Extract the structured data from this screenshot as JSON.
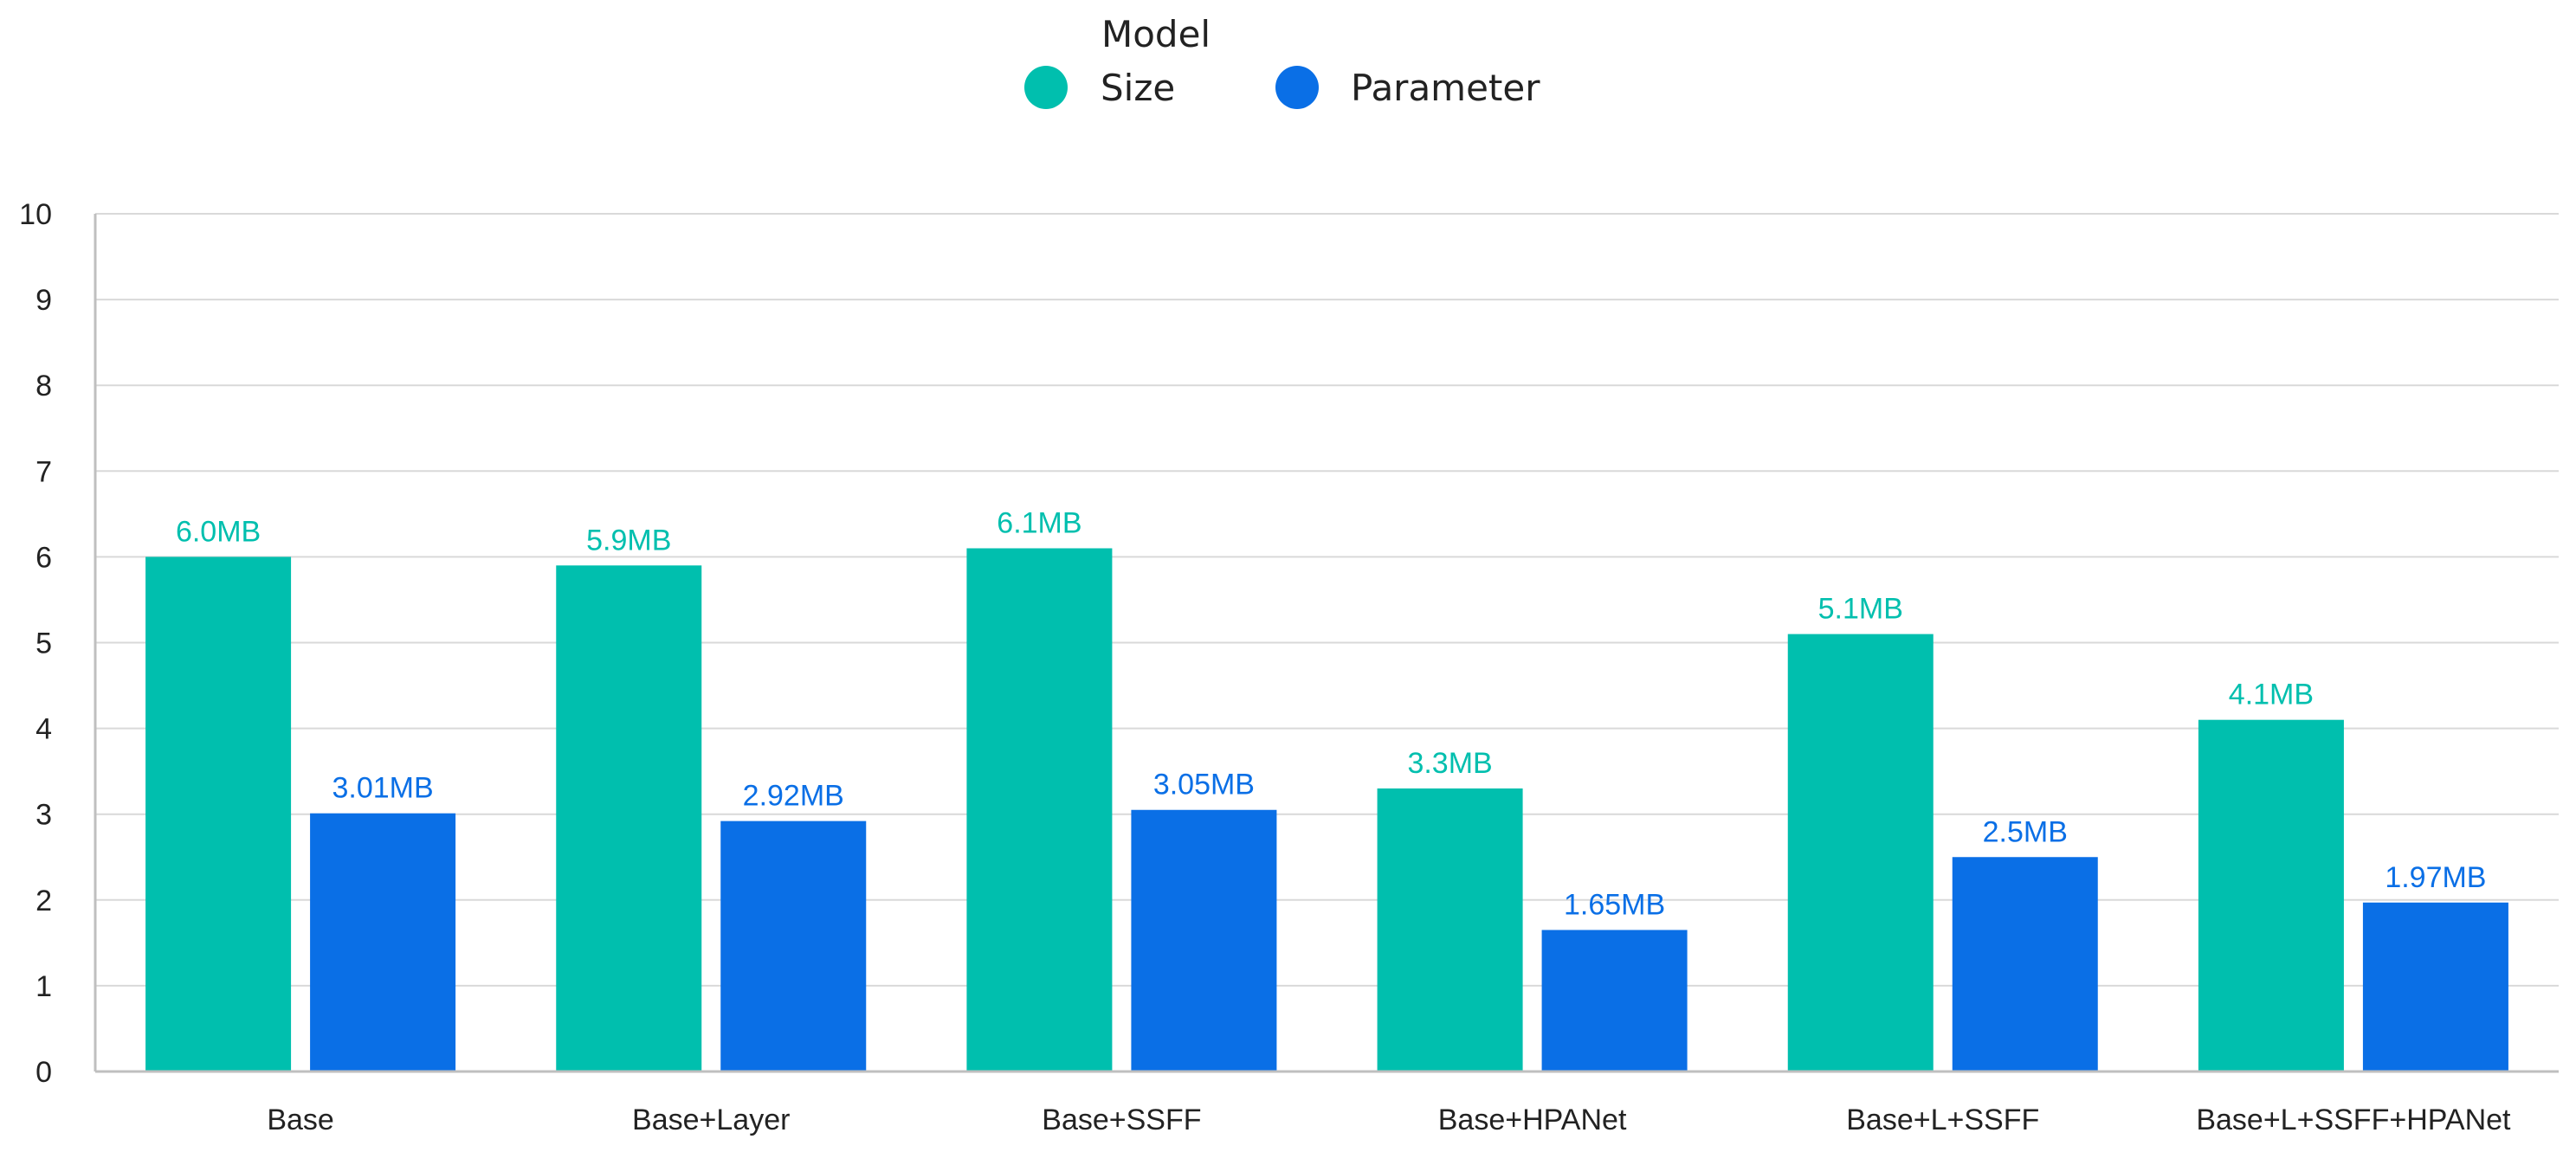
{
  "chart_data": {
    "type": "bar",
    "title": "",
    "xlabel": "",
    "ylabel": "",
    "ylim": [
      0,
      10
    ],
    "yticks": [
      0,
      1,
      2,
      3,
      4,
      5,
      6,
      7,
      8,
      9,
      10
    ],
    "grid": true,
    "legend": {
      "placement": "top-center",
      "title": "Model",
      "entries": [
        "Size",
        "Parameter"
      ]
    },
    "categories": [
      "Base",
      "Base+Layer",
      "Base+SSFF",
      "Base+HPANet",
      "Base+L+SSFF",
      "Base+L+SSFF+HPANet"
    ],
    "series": [
      {
        "name": "Size",
        "color": "#00BFAE",
        "values": [
          6.0,
          5.9,
          6.1,
          3.3,
          5.1,
          4.1
        ],
        "labels": [
          "6.0MB",
          "5.9MB",
          "6.1MB",
          "3.3MB",
          "5.1MB",
          "4.1MB"
        ]
      },
      {
        "name": "Parameter",
        "color": "#0A6FE6",
        "values": [
          3.01,
          2.92,
          3.05,
          1.65,
          2.5,
          1.97
        ],
        "labels": [
          "3.01MB",
          "2.92MB",
          "3.05MB",
          "1.65MB",
          "2.5MB",
          "1.97MB"
        ]
      }
    ]
  }
}
